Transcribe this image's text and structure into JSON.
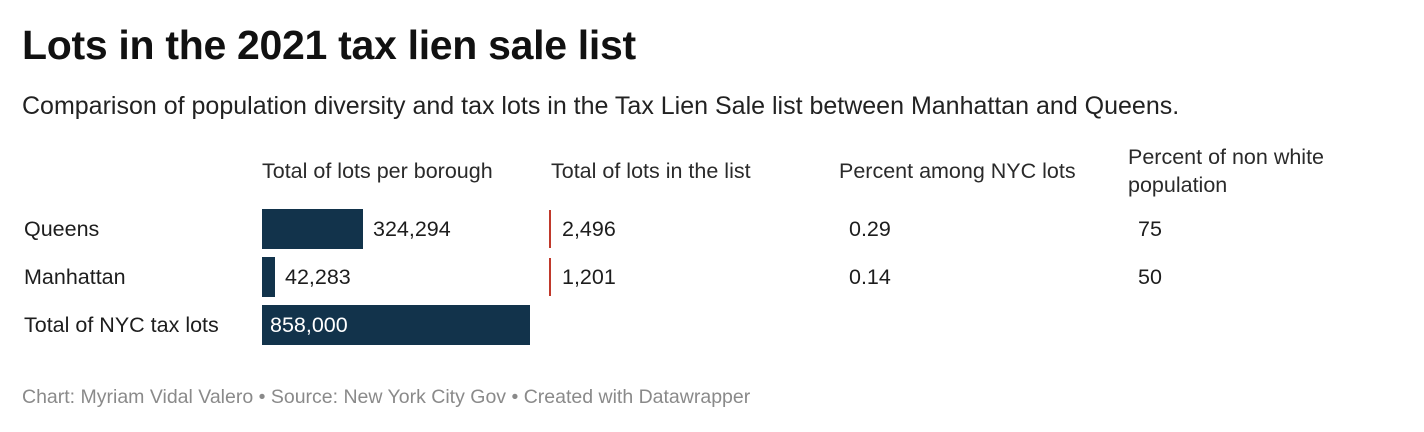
{
  "chart_data": {
    "type": "table",
    "title": "Lots in the 2021 tax lien sale list",
    "subtitle": "Comparison of population diversity and tax lots in the Tax Lien Sale list between Manhattan and Queens.",
    "columns": [
      "Total of lots per borough",
      "Total of lots in the list",
      "Percent among NYC lots",
      "Percent of non white population"
    ],
    "rows": [
      {
        "label": "Queens",
        "total_lots": 324294,
        "total_lots_label": "324,294",
        "lots_in_list": 2496,
        "lots_in_list_label": "2,496",
        "percent_nyc": "0.29",
        "percent_non_white": "75"
      },
      {
        "label": "Manhattan",
        "total_lots": 42283,
        "total_lots_label": "42,283",
        "lots_in_list": 1201,
        "lots_in_list_label": "1,201",
        "percent_nyc": "0.14",
        "percent_non_white": "50"
      },
      {
        "label": "Total of NYC tax lots",
        "total_lots": 858000,
        "total_lots_label": "858,000"
      }
    ],
    "bar_max": 858000,
    "bar_color": "#12334b",
    "tick_color": "#c0392b"
  },
  "footer": "Chart: Myriam Vidal Valero • Source: New York City Gov • Created with Datawrapper"
}
